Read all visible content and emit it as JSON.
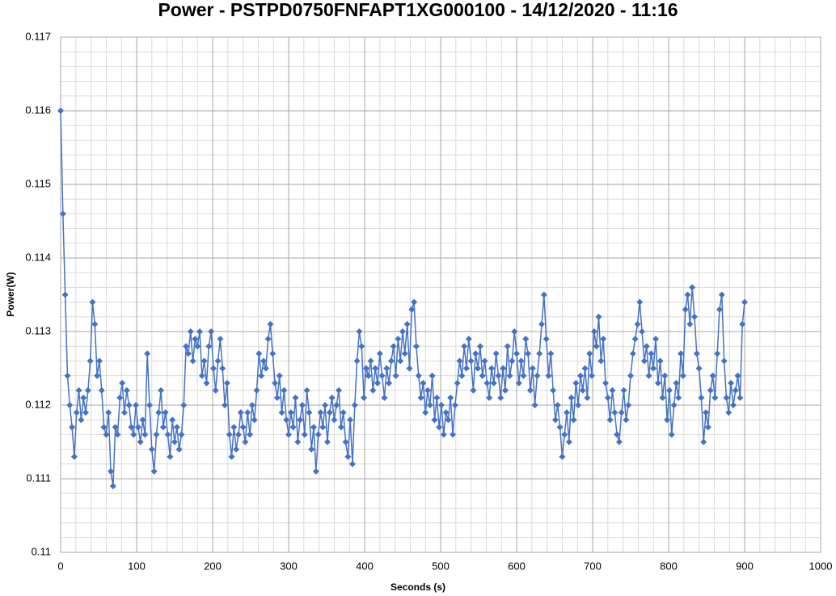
{
  "chart_data": {
    "type": "line",
    "title": "Power - PSTPD0750FNFAPT1XG000100 - 14/12/2020 - 11:16",
    "x_label": "Seconds (s)",
    "y_label": "Power(W)",
    "xlim": [
      0,
      1000
    ],
    "xticks": [
      0,
      100,
      200,
      300,
      400,
      500,
      600,
      700,
      800,
      900,
      1000
    ],
    "ylim": [
      0.11,
      0.117
    ],
    "yticks": [
      0.11,
      0.111,
      0.112,
      0.113,
      0.114,
      0.115,
      0.116,
      0.117
    ],
    "grid": true,
    "minor_grid": true,
    "marker": "diamond",
    "x": [
      0,
      3,
      6,
      9,
      12,
      15,
      18,
      21,
      24,
      27,
      30,
      33,
      36,
      39,
      42,
      45,
      48,
      51,
      54,
      57,
      60,
      63,
      66,
      69,
      72,
      75,
      78,
      81,
      84,
      87,
      90,
      93,
      96,
      99,
      102,
      105,
      108,
      111,
      114,
      117,
      120,
      123,
      126,
      129,
      132,
      135,
      138,
      141,
      144,
      147,
      150,
      153,
      156,
      159,
      162,
      165,
      168,
      171,
      174,
      177,
      180,
      183,
      186,
      189,
      192,
      195,
      198,
      201,
      204,
      207,
      210,
      213,
      216,
      219,
      222,
      225,
      228,
      231,
      234,
      237,
      240,
      243,
      246,
      249,
      252,
      255,
      258,
      261,
      264,
      267,
      270,
      273,
      276,
      279,
      282,
      285,
      288,
      291,
      294,
      297,
      300,
      303,
      306,
      309,
      312,
      315,
      318,
      321,
      324,
      327,
      330,
      333,
      336,
      339,
      342,
      345,
      348,
      351,
      354,
      357,
      360,
      363,
      366,
      369,
      372,
      375,
      378,
      381,
      384,
      387,
      390,
      393,
      396,
      399,
      402,
      405,
      408,
      411,
      414,
      417,
      420,
      423,
      426,
      429,
      432,
      435,
      438,
      441,
      444,
      447,
      450,
      453,
      456,
      459,
      462,
      465,
      468,
      471,
      474,
      477,
      480,
      483,
      486,
      489,
      492,
      495,
      498,
      501,
      504,
      507,
      510,
      513,
      516,
      519,
      522,
      525,
      528,
      531,
      534,
      537,
      540,
      543,
      546,
      549,
      552,
      555,
      558,
      561,
      564,
      567,
      570,
      573,
      576,
      579,
      582,
      585,
      588,
      591,
      594,
      597,
      600,
      603,
      606,
      609,
      612,
      615,
      618,
      621,
      624,
      627,
      630,
      633,
      636,
      639,
      642,
      645,
      648,
      651,
      654,
      657,
      660,
      663,
      666,
      669,
      672,
      675,
      678,
      681,
      684,
      687,
      690,
      693,
      696,
      699,
      702,
      705,
      708,
      711,
      714,
      717,
      720,
      723,
      726,
      729,
      732,
      735,
      738,
      741,
      744,
      747,
      750,
      753,
      756,
      759,
      762,
      765,
      768,
      771,
      774,
      777,
      780,
      783,
      786,
      789,
      792,
      795,
      798,
      801,
      804,
      807,
      810,
      813,
      816,
      819,
      822,
      825,
      828,
      831,
      834,
      837,
      840,
      843,
      846,
      849,
      852,
      855,
      858,
      861,
      864,
      867,
      870,
      873,
      876,
      879,
      882,
      885,
      888,
      891,
      894,
      897,
      900
    ],
    "series": [
      {
        "name": "Power",
        "color": "#4472c4",
        "values": [
          0.116,
          0.1146,
          0.1135,
          0.1124,
          0.112,
          0.1117,
          0.1113,
          0.1119,
          0.1122,
          0.1118,
          0.1121,
          0.1119,
          0.1122,
          0.1126,
          0.1134,
          0.1131,
          0.1124,
          0.1126,
          0.1122,
          0.1117,
          0.1116,
          0.1119,
          0.1111,
          0.1109,
          0.1117,
          0.1116,
          0.1121,
          0.1123,
          0.1119,
          0.1122,
          0.112,
          0.1117,
          0.1116,
          0.112,
          0.1117,
          0.1115,
          0.1118,
          0.1116,
          0.1127,
          0.112,
          0.1114,
          0.1111,
          0.1116,
          0.1119,
          0.1122,
          0.1117,
          0.1119,
          0.1116,
          0.1113,
          0.1118,
          0.1115,
          0.1117,
          0.1114,
          0.1116,
          0.112,
          0.1128,
          0.1127,
          0.113,
          0.1126,
          0.1129,
          0.1128,
          0.113,
          0.1124,
          0.1126,
          0.1123,
          0.1128,
          0.113,
          0.1125,
          0.1122,
          0.1126,
          0.1129,
          0.1125,
          0.112,
          0.1123,
          0.1116,
          0.1113,
          0.1117,
          0.1114,
          0.1116,
          0.1119,
          0.1117,
          0.1115,
          0.1119,
          0.1116,
          0.112,
          0.1118,
          0.1122,
          0.1127,
          0.1124,
          0.1126,
          0.1125,
          0.1129,
          0.1131,
          0.1127,
          0.1123,
          0.1121,
          0.1124,
          0.1119,
          0.1122,
          0.1118,
          0.1116,
          0.1119,
          0.1117,
          0.1121,
          0.1115,
          0.1118,
          0.112,
          0.1116,
          0.1122,
          0.1119,
          0.1114,
          0.1117,
          0.1111,
          0.1116,
          0.1119,
          0.1117,
          0.112,
          0.1115,
          0.1119,
          0.1121,
          0.1118,
          0.112,
          0.1122,
          0.1117,
          0.1119,
          0.1115,
          0.1113,
          0.1118,
          0.1112,
          0.112,
          0.1126,
          0.113,
          0.1128,
          0.1121,
          0.1125,
          0.1124,
          0.1126,
          0.1122,
          0.1125,
          0.1123,
          0.1127,
          0.1124,
          0.1121,
          0.1125,
          0.1123,
          0.1126,
          0.1128,
          0.1124,
          0.1129,
          0.1126,
          0.113,
          0.1127,
          0.1131,
          0.1125,
          0.1133,
          0.1134,
          0.1128,
          0.1124,
          0.1121,
          0.1123,
          0.1119,
          0.1122,
          0.112,
          0.1124,
          0.1118,
          0.1121,
          0.1117,
          0.112,
          0.1116,
          0.1119,
          0.1118,
          0.1121,
          0.1116,
          0.112,
          0.1123,
          0.1126,
          0.1124,
          0.1128,
          0.1125,
          0.1129,
          0.1126,
          0.1122,
          0.1127,
          0.1125,
          0.1128,
          0.1124,
          0.1126,
          0.1123,
          0.1121,
          0.1125,
          0.1123,
          0.1127,
          0.1124,
          0.1121,
          0.1125,
          0.1122,
          0.1128,
          0.1124,
          0.1126,
          0.113,
          0.1127,
          0.1123,
          0.1126,
          0.1124,
          0.1129,
          0.1127,
          0.1122,
          0.1125,
          0.112,
          0.1124,
          0.1127,
          0.1131,
          0.1135,
          0.1129,
          0.1124,
          0.1127,
          0.1122,
          0.1118,
          0.112,
          0.1117,
          0.1113,
          0.1116,
          0.1119,
          0.1115,
          0.1121,
          0.1118,
          0.1123,
          0.112,
          0.1124,
          0.1122,
          0.1125,
          0.1121,
          0.1127,
          0.1124,
          0.113,
          0.1128,
          0.1132,
          0.1126,
          0.1129,
          0.1123,
          0.1121,
          0.1118,
          0.1122,
          0.1119,
          0.1116,
          0.1115,
          0.1119,
          0.1122,
          0.1118,
          0.112,
          0.1124,
          0.1127,
          0.1129,
          0.1131,
          0.1134,
          0.113,
          0.1126,
          0.1128,
          0.1124,
          0.1127,
          0.1125,
          0.1129,
          0.1123,
          0.1126,
          0.1121,
          0.1124,
          0.1118,
          0.1122,
          0.1116,
          0.112,
          0.1123,
          0.1121,
          0.1127,
          0.1124,
          0.1133,
          0.1135,
          0.1131,
          0.1136,
          0.1132,
          0.1127,
          0.1125,
          0.1121,
          0.1115,
          0.1119,
          0.1117,
          0.1122,
          0.1124,
          0.1121,
          0.1127,
          0.1133,
          0.1135,
          0.1126,
          0.1121,
          0.1119,
          0.1123,
          0.112,
          0.1122,
          0.1124,
          0.1121,
          0.1131,
          0.1134
        ]
      }
    ]
  }
}
